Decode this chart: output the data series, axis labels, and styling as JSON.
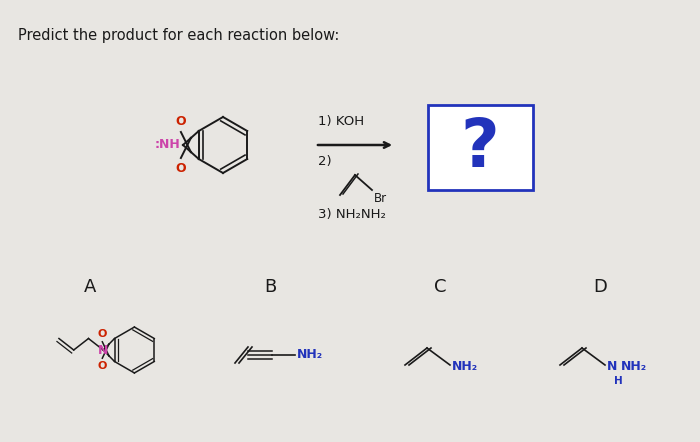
{
  "title": "Predict the product for each reaction below:",
  "title_fontsize": 10.5,
  "bg_color": "#e8e6e2",
  "white": "#ffffff",
  "text_color": "#1a1a1a",
  "blue_color": "#2233bb",
  "red_color": "#cc2200",
  "pink_color": "#cc44aa",
  "step1_text": "1) KOH",
  "step3_text": "3) NH₂NH₂",
  "question_mark": "?",
  "labels": [
    "A",
    "B",
    "C",
    "D"
  ]
}
